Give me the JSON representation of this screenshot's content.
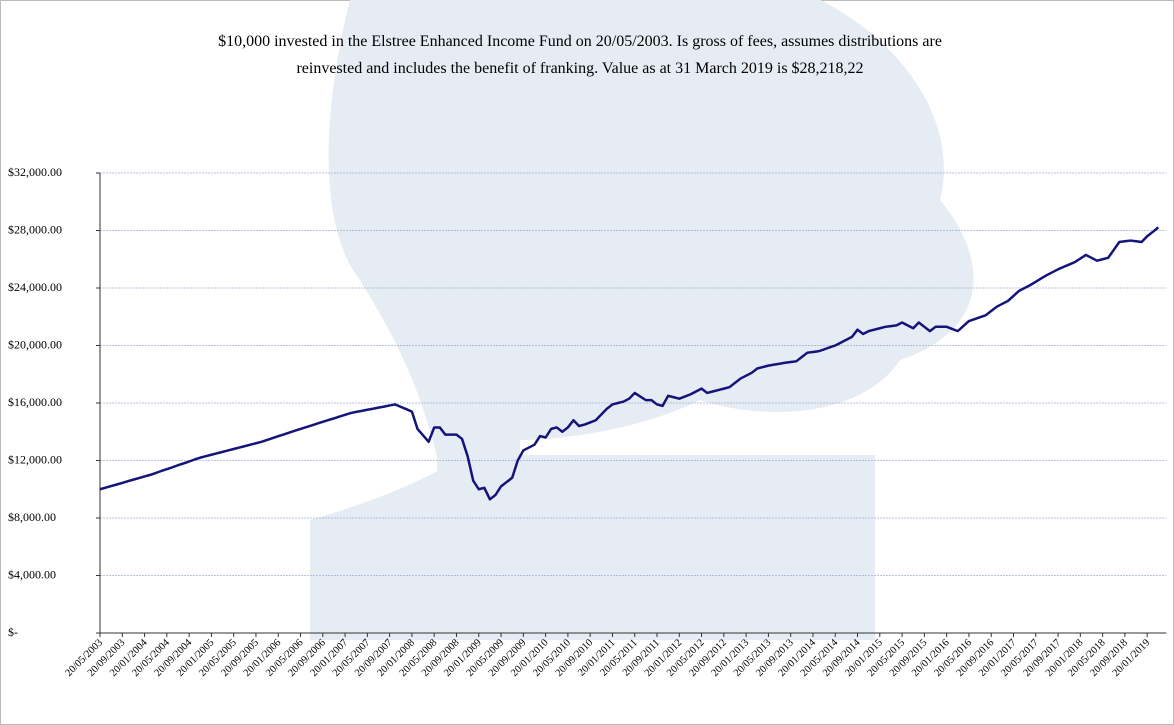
{
  "chart_data": {
    "type": "line",
    "title": [
      "$10,000 invested in the Elstree Enhanced Income Fund on 20/05/2003. Is gross of fees, assumes distributions are",
      "reinvested and includes the benefit of franking. Value as at 31 March 2019 is $28,218,22"
    ],
    "categories": [
      "20/05/2003",
      null,
      null,
      null,
      "20/09/2003",
      null,
      null,
      null,
      "20/01/2004",
      null,
      null,
      null,
      "20/05/2004",
      null,
      null,
      null,
      "20/09/2004",
      null,
      null,
      null,
      "20/01/2005",
      null,
      null,
      null,
      "20/05/2005",
      null,
      null,
      null,
      "20/09/2005",
      null,
      null,
      null,
      "20/01/2006",
      null,
      null,
      null,
      "20/05/2006",
      null,
      null,
      null,
      "20/09/2006",
      null,
      null,
      null,
      "20/01/2007",
      null,
      null,
      null,
      "20/05/2007",
      null,
      null,
      null,
      "20/09/2007",
      null,
      null,
      null,
      "20/01/2008",
      null,
      null,
      null,
      "20/05/2008",
      null,
      null,
      null,
      "20/09/2008",
      null,
      null,
      null,
      "20/01/2009",
      null,
      null,
      null,
      "20/05/2009",
      null,
      null,
      null,
      "20/09/2009",
      null,
      null,
      null,
      "20/01/2010",
      null,
      null,
      null,
      "20/05/2010",
      null,
      null,
      null,
      "20/09/2010",
      null,
      null,
      null,
      "20/01/2011",
      null,
      null,
      null,
      "20/05/2011",
      null,
      null,
      null,
      "20/09/2011",
      null,
      null,
      null,
      "20/01/2012",
      null,
      null,
      null,
      "20/05/2012",
      null,
      null,
      null,
      "20/09/2012",
      null,
      null,
      null,
      "20/01/2013",
      null,
      null,
      null,
      "20/05/2013",
      null,
      null,
      null,
      "20/09/2013",
      null,
      null,
      null,
      "20/01/2014",
      null,
      null,
      null,
      "20/05/2014",
      null,
      null,
      null,
      "20/09/2014",
      null,
      null,
      null,
      "20/01/2015",
      null,
      null,
      null,
      "20/05/2015",
      null,
      null,
      null,
      "20/09/2015",
      null,
      null,
      null,
      "20/01/2016",
      null,
      null,
      null,
      "20/05/2016",
      null,
      null,
      null,
      "20/09/2016",
      null,
      null,
      null,
      "20/01/2017",
      null,
      null,
      null,
      "20/05/2017",
      null,
      null,
      null,
      "20/09/2017",
      null,
      null,
      null,
      "20/01/2018",
      null,
      null,
      null,
      "20/05/2018",
      null,
      null,
      null,
      "20/09/2018",
      null,
      null,
      null,
      "20/01/2019",
      null,
      null
    ],
    "values": [
      10000,
      10110,
      10220,
      10330,
      10440,
      10560,
      10670,
      10780,
      10890,
      11000,
      11130,
      11270,
      11400,
      11530,
      11670,
      11800,
      11930,
      12070,
      12200,
      12300,
      12400,
      12500,
      12600,
      12700,
      12800,
      12900,
      13000,
      13100,
      13200,
      13300,
      13430,
      13560,
      13690,
      13810,
      13940,
      14070,
      14200,
      14320,
      14440,
      14570,
      14690,
      14810,
      14930,
      15060,
      15180,
      15300,
      15380,
      15450,
      15530,
      15600,
      15680,
      15750,
      15830,
      15900,
      15730,
      15570,
      15400,
      14200,
      13750,
      13300,
      14300,
      14300,
      13800,
      13800,
      13800,
      13500,
      12300,
      10600,
      10000,
      10100,
      9300,
      9600,
      10200,
      10500,
      10800,
      12000,
      12700,
      12900,
      13100,
      13700,
      13600,
      14200,
      14300,
      14000,
      14300,
      14800,
      14400,
      14500,
      14650,
      14800,
      15200,
      15600,
      15900,
      16000,
      16100,
      16300,
      16700,
      16450,
      16200,
      16200,
      15900,
      15800,
      16500,
      16400,
      16300,
      16450,
      16600,
      16800,
      17000,
      16700,
      16800,
      16900,
      17000,
      17100,
      17400,
      17700,
      17900,
      18100,
      18400,
      18500,
      18600,
      18670,
      18730,
      18800,
      18850,
      18900,
      19200,
      19500,
      19550,
      19600,
      19730,
      19870,
      20000,
      20200,
      20400,
      20600,
      21100,
      20800,
      21000,
      21100,
      21200,
      21300,
      21350,
      21400,
      21600,
      21400,
      21200,
      21600,
      21300,
      21000,
      21300,
      21300,
      21300,
      21150,
      21000,
      21350,
      21700,
      21830,
      21970,
      22100,
      22400,
      22700,
      22900,
      23100,
      23450,
      23800,
      24000,
      24200,
      24430,
      24670,
      24900,
      25100,
      25300,
      25470,
      25630,
      25800,
      26050,
      26300,
      26100,
      25900,
      26000,
      26100,
      26650,
      27200,
      27250,
      27300,
      27250,
      27200,
      27600,
      27900,
      28218
    ],
    "color": "#14147a",
    "ylim": [
      0,
      32000
    ],
    "yticks": [
      {
        "value": 0,
        "label": "$-"
      },
      {
        "value": 4000,
        "label": "$4,000.00"
      },
      {
        "value": 8000,
        "label": "$8,000.00"
      },
      {
        "value": 12000,
        "label": "$12,000.00"
      },
      {
        "value": 16000,
        "label": "$16,000.00"
      },
      {
        "value": 20000,
        "label": "$20,000.00"
      },
      {
        "value": 24000,
        "label": "$24,000.00"
      },
      {
        "value": 28000,
        "label": "$28,000.00"
      },
      {
        "value": 32000,
        "label": "$32,000.00"
      }
    ],
    "grid": true
  }
}
